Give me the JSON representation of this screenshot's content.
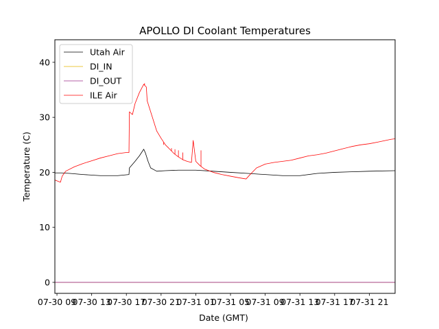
{
  "chart_data": {
    "type": "line",
    "title": "APOLLO DI Coolant Temperatures",
    "xlabel": "Date (GMT)",
    "ylabel": "Temperature (C)",
    "x_units": "hours since 07-30 09:00 GMT",
    "xlim": [
      -0.24,
      38.97
    ],
    "ylim": [
      -2.0,
      44.1
    ],
    "yticks": [
      0,
      10,
      20,
      30,
      40
    ],
    "xticks": [
      0,
      4,
      8,
      12,
      16,
      20,
      24,
      28,
      32,
      36
    ],
    "xtick_labels": [
      "07-30 09",
      "07-30 13",
      "07-30 17",
      "07-30 21",
      "07-31 01",
      "07-31 05",
      "07-31 09",
      "07-31 13",
      "07-31 17",
      "07-31 21"
    ],
    "grid": false,
    "legend_position": "top-left",
    "series": [
      {
        "name": "Utah Air",
        "color": "#000000",
        "x": [
          -0.24,
          0.5,
          1.5,
          3,
          5,
          7,
          8.3,
          8.35,
          9,
          9.5,
          10,
          10.2,
          10.5,
          10.8,
          11.5,
          12.5,
          14,
          16,
          18,
          20,
          22,
          24,
          26,
          28,
          30,
          32,
          34,
          36,
          38.97
        ],
        "y": [
          19.9,
          19.9,
          19.8,
          19.6,
          19.4,
          19.4,
          19.6,
          20.8,
          22.0,
          23.0,
          24.2,
          23.5,
          22.0,
          20.8,
          20.2,
          20.3,
          20.4,
          20.4,
          20.2,
          20.0,
          19.8,
          19.6,
          19.4,
          19.4,
          19.8,
          20.0,
          20.1,
          20.2,
          20.3
        ]
      },
      {
        "name": "DI_IN",
        "color": "#e6b800",
        "x": [
          -0.24,
          38.97
        ],
        "y": [
          0,
          0
        ]
      },
      {
        "name": "DI_OUT",
        "color": "#9b2d8a",
        "x": [
          -0.24,
          38.97
        ],
        "y": [
          0,
          0
        ]
      },
      {
        "name": "ILE Air",
        "color": "#ff0000",
        "x": [
          -0.24,
          0.4,
          0.6,
          1,
          2,
          3,
          4,
          5,
          6,
          7,
          8.0,
          8.3,
          8.35,
          8.7,
          9,
          9.5,
          10,
          10.3,
          10.4,
          10.8,
          11,
          11.5,
          12,
          12.5,
          13,
          13.5,
          14,
          14.5,
          15,
          15.5,
          15.7,
          16,
          16.5,
          17,
          18,
          19,
          20,
          21,
          21.8,
          22.2,
          23,
          24,
          25,
          26,
          27,
          28,
          29,
          30,
          31,
          32,
          33,
          34,
          35,
          36,
          37,
          38.5,
          38.97
        ],
        "y": [
          18.6,
          18.2,
          19.3,
          20.2,
          21.0,
          21.6,
          22.1,
          22.6,
          23.0,
          23.4,
          23.6,
          23.6,
          31.0,
          30.5,
          32.5,
          34.5,
          36.0,
          35.5,
          33.0,
          31.0,
          30.0,
          27.5,
          26.2,
          25.0,
          24.2,
          23.4,
          22.8,
          22.3,
          22.0,
          21.8,
          25.8,
          22.0,
          21.2,
          20.6,
          20.0,
          19.6,
          19.3,
          19.0,
          18.8,
          19.5,
          20.8,
          21.5,
          21.8,
          22.0,
          22.2,
          22.6,
          23.0,
          23.2,
          23.5,
          23.9,
          24.3,
          24.7,
          25.0,
          25.2,
          25.5,
          26.0,
          26.1
        ]
      }
    ],
    "spikes": {
      "ILE Air": [
        {
          "x": 10.1,
          "y": 36.2
        },
        {
          "x": 12.3,
          "y": 25.0
        },
        {
          "x": 12.8,
          "y": 24.6
        },
        {
          "x": 13.2,
          "y": 24.4
        },
        {
          "x": 13.6,
          "y": 24.2
        },
        {
          "x": 14.0,
          "y": 24.0
        },
        {
          "x": 14.5,
          "y": 23.6
        },
        {
          "x": 15.7,
          "y": 25.8
        },
        {
          "x": 16.6,
          "y": 24.0
        }
      ]
    }
  }
}
